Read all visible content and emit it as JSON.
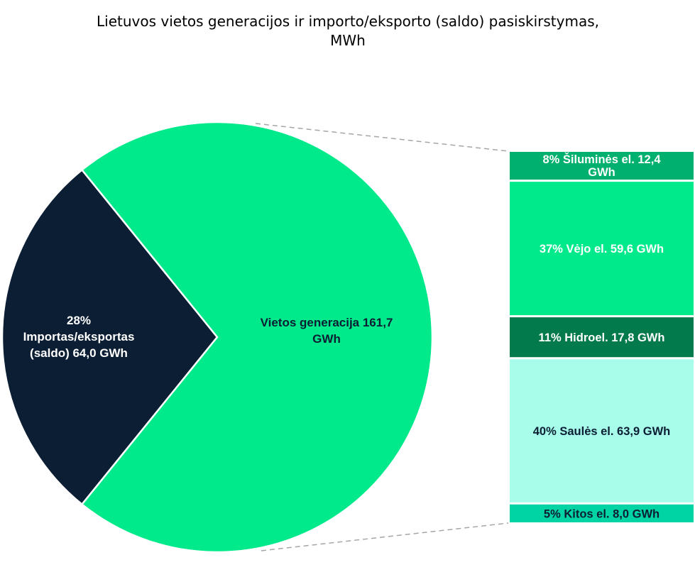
{
  "chart_data": {
    "type": "pie",
    "subtype": "pie-of-bar",
    "title": "Lietuvos vietos generacijos ir importo/eksporto (saldo) pasiskirstymas, MWh",
    "title_lines": [
      "Lietuvos vietos generacijos ir importo/eksporto (saldo) pasiskirstymas,",
      "MWh"
    ],
    "pie": [
      {
        "name": "Importas/eksportas (saldo)",
        "value": 64.0,
        "unit": "GWh",
        "percent": 28,
        "label_lines": [
          "28%",
          "Importas/eksportas",
          "(saldo)  64,0 GWh"
        ],
        "color": "#0b1e33"
      },
      {
        "name": "Vietos generacija",
        "value": 161.7,
        "unit": "GWh",
        "percent": 72,
        "label_lines": [
          "Vietos generacija   161,7",
          "GWh"
        ],
        "color": "#00e98b"
      }
    ],
    "breakdown_of": "Vietos generacija",
    "breakdown": [
      {
        "name": "Šiluminės el.",
        "value": 12.4,
        "unit": "GWh",
        "percent": 8,
        "label_lines": [
          "8% Šiluminės el.  12,4",
          "GWh"
        ],
        "color": "#00b06e",
        "text_color": "#ffffff"
      },
      {
        "name": "Vėjo el.",
        "value": 59.6,
        "unit": "GWh",
        "percent": 37,
        "label_lines": [
          "37% Vėjo el.  59,6 GWh"
        ],
        "color": "#00e98b",
        "text_color": "#ffffff"
      },
      {
        "name": "Hidroel.",
        "value": 17.8,
        "unit": "GWh",
        "percent": 11,
        "label_lines": [
          "11% Hidroel.  17,8 GWh"
        ],
        "color": "#037a4b",
        "text_color": "#ffffff"
      },
      {
        "name": "Saulės el.",
        "value": 63.9,
        "unit": "GWh",
        "percent": 40,
        "label_lines": [
          "40% Saulės el.  63,9 GWh"
        ],
        "color": "#a7fdea",
        "text_color": "#0b1e33"
      },
      {
        "name": "Kitos el.",
        "value": 8.0,
        "unit": "GWh",
        "percent": 5,
        "label_lines": [
          "5% Kitos el.  8,0 GWh"
        ],
        "color": "#00d3a4",
        "text_color": "#0b1e33"
      }
    ],
    "connector_color": "#a6a6a6",
    "legend": "none"
  }
}
